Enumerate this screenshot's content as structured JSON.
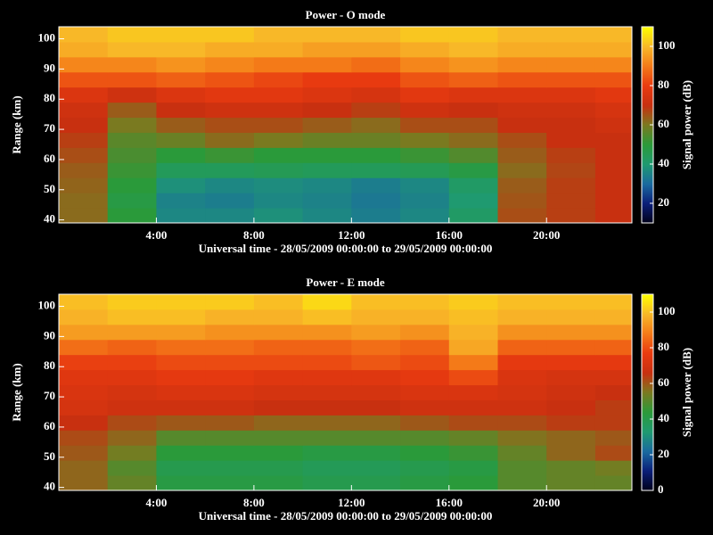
{
  "chart_data": [
    {
      "type": "heatmap",
      "title": "Power - O mode",
      "xlabel": "Universal time - 28/05/2009 00:00:00 to 29/05/2009 00:00:00",
      "ylabel": "Range (km)",
      "colorbar_label": "Signal power (dB)",
      "xlim": [
        0,
        23.5
      ],
      "xticks": [
        {
          "value": 4,
          "label": "4:00"
        },
        {
          "value": 8,
          "label": "8:00"
        },
        {
          "value": 12,
          "label": "12:00"
        },
        {
          "value": 16,
          "label": "16:00"
        },
        {
          "value": 20,
          "label": "20:00"
        }
      ],
      "ylim": [
        39,
        104
      ],
      "yticks": [
        40,
        50,
        60,
        70,
        80,
        90,
        100
      ],
      "clim": [
        10,
        110
      ],
      "cticks": [
        20,
        40,
        60,
        80,
        100
      ],
      "colormap": [
        "#000018",
        "#0a1e78",
        "#1a6aa0",
        "#1f9a70",
        "#2a9a3a",
        "#7a7a20",
        "#c83010",
        "#e83a10",
        "#f47a18",
        "#f8b828",
        "#ffff00"
      ],
      "x_bins": [
        0,
        2,
        4,
        6,
        8,
        10,
        12,
        14,
        16,
        18,
        20,
        22,
        23.5
      ],
      "y_bins": [
        39,
        44,
        49,
        54,
        59,
        64,
        69,
        74,
        79,
        84,
        89,
        94,
        99,
        104
      ],
      "values": [
        [
          62,
          50,
          36,
          36,
          38,
          36,
          34,
          36,
          42,
          66,
          68,
          70
        ],
        [
          62,
          48,
          35,
          34,
          36,
          35,
          33,
          35,
          40,
          65,
          68,
          70
        ],
        [
          63,
          50,
          38,
          36,
          37,
          36,
          34,
          36,
          42,
          64,
          68,
          70
        ],
        [
          64,
          52,
          44,
          44,
          45,
          44,
          44,
          45,
          48,
          62,
          67,
          70
        ],
        [
          66,
          54,
          50,
          52,
          50,
          50,
          50,
          52,
          55,
          64,
          68,
          70
        ],
        [
          68,
          56,
          58,
          62,
          60,
          58,
          58,
          60,
          62,
          66,
          70,
          70
        ],
        [
          70,
          60,
          64,
          66,
          66,
          64,
          62,
          66,
          66,
          70,
          70,
          72
        ],
        [
          72,
          64,
          70,
          72,
          72,
          70,
          68,
          72,
          70,
          72,
          72,
          74
        ],
        [
          76,
          72,
          76,
          78,
          78,
          76,
          74,
          78,
          76,
          76,
          76,
          78
        ],
        [
          84,
          84,
          86,
          84,
          82,
          80,
          80,
          84,
          86,
          84,
          84,
          84
        ],
        [
          92,
          92,
          94,
          92,
          90,
          90,
          88,
          92,
          94,
          92,
          92,
          92
        ],
        [
          98,
          100,
          100,
          98,
          98,
          96,
          96,
          98,
          100,
          98,
          98,
          98
        ],
        [
          100,
          102,
          102,
          102,
          100,
          100,
          100,
          102,
          102,
          100,
          100,
          100
        ]
      ]
    },
    {
      "type": "heatmap",
      "title": "Power - E mode",
      "xlabel": "Universal time - 28/05/2009 00:00:00 to 29/05/2009 00:00:00",
      "ylabel": "Range (km)",
      "colorbar_label": "Signal power (dB)",
      "xlim": [
        0,
        23.5
      ],
      "xticks": [
        {
          "value": 4,
          "label": "4:00"
        },
        {
          "value": 8,
          "label": "8:00"
        },
        {
          "value": 12,
          "label": "12:00"
        },
        {
          "value": 16,
          "label": "16:00"
        },
        {
          "value": 20,
          "label": "20:00"
        }
      ],
      "ylim": [
        39,
        104
      ],
      "yticks": [
        40,
        50,
        60,
        70,
        80,
        90,
        100
      ],
      "clim": [
        0,
        110
      ],
      "cticks": [
        0,
        20,
        40,
        60,
        80,
        100
      ],
      "colormap": [
        "#000018",
        "#0a1e78",
        "#1a6aa0",
        "#1f9a70",
        "#2a9a3a",
        "#7a7a20",
        "#c83010",
        "#e83a10",
        "#f47a18",
        "#f8b828",
        "#ffff00"
      ],
      "x_bins": [
        0,
        2,
        4,
        6,
        8,
        10,
        12,
        14,
        16,
        18,
        20,
        22,
        23.5
      ],
      "y_bins": [
        39,
        44,
        49,
        54,
        59,
        64,
        69,
        74,
        79,
        84,
        89,
        94,
        99,
        104
      ],
      "values": [
        [
          58,
          52,
          42,
          42,
          42,
          40,
          40,
          42,
          44,
          50,
          52,
          52
        ],
        [
          58,
          50,
          40,
          40,
          40,
          38,
          38,
          40,
          42,
          50,
          52,
          54
        ],
        [
          60,
          54,
          44,
          44,
          44,
          42,
          42,
          44,
          46,
          52,
          58,
          62
        ],
        [
          62,
          58,
          50,
          50,
          50,
          50,
          50,
          50,
          52,
          56,
          58,
          60
        ],
        [
          66,
          62,
          60,
          60,
          58,
          58,
          58,
          60,
          62,
          62,
          64,
          64
        ],
        [
          70,
          68,
          68,
          68,
          66,
          66,
          66,
          68,
          68,
          68,
          66,
          64
        ],
        [
          72,
          70,
          72,
          72,
          70,
          70,
          70,
          72,
          72,
          70,
          68,
          66
        ],
        [
          74,
          74,
          76,
          76,
          74,
          74,
          74,
          76,
          80,
          72,
          70,
          70
        ],
        [
          78,
          78,
          80,
          80,
          80,
          80,
          82,
          80,
          88,
          76,
          76,
          76
        ],
        [
          86,
          84,
          86,
          86,
          84,
          84,
          86,
          84,
          96,
          84,
          84,
          84
        ],
        [
          94,
          94,
          94,
          92,
          92,
          92,
          94,
          92,
          98,
          92,
          92,
          92
        ],
        [
          98,
          100,
          100,
          98,
          98,
          100,
          98,
          98,
          100,
          98,
          98,
          98
        ],
        [
          100,
          102,
          102,
          102,
          100,
          104,
          100,
          100,
          102,
          100,
          100,
          100
        ]
      ]
    }
  ]
}
